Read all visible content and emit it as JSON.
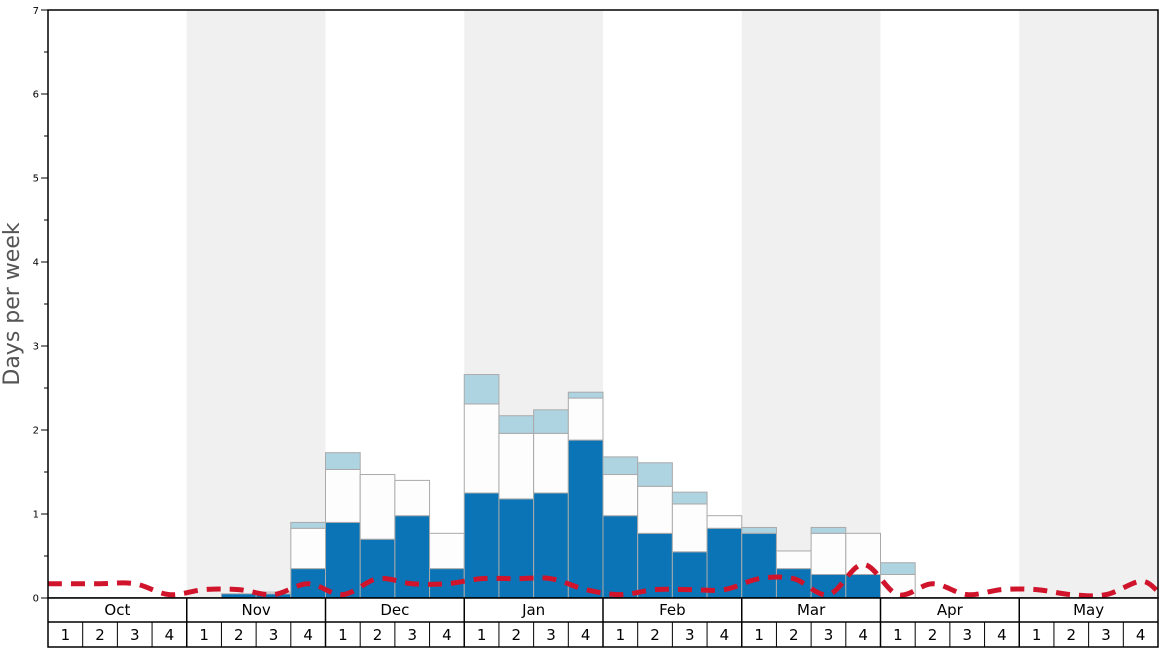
{
  "chart_data": {
    "type": "bar",
    "ylabel": "Days per week",
    "ylim": [
      0,
      7
    ],
    "y_ticks": [
      "0",
      "1",
      "2",
      "3",
      "4",
      "5",
      "6",
      "7"
    ],
    "months": [
      "Oct",
      "Nov",
      "Dec",
      "Jan",
      "Feb",
      "Mar",
      "Apr",
      "May"
    ],
    "week_labels": [
      "1",
      "2",
      "3",
      "4"
    ],
    "shaded_months": [
      "Nov",
      "Jan",
      "Mar",
      "May"
    ],
    "colors": {
      "bottom": "#0a74b6",
      "middle": "#fdfdfd",
      "top": "#aed4e1",
      "line": "#d0142c",
      "shade": "#f0f0f0",
      "bar_edge": "#aaaaaa"
    },
    "series": [
      {
        "values": [
          0,
          0,
          0,
          0,
          0,
          0.05,
          0.05,
          0.35,
          0.9,
          0.7,
          0.98,
          0.35,
          1.25,
          1.18,
          1.25,
          1.88,
          0.98,
          0.77,
          0.55,
          0.83,
          0.77,
          0.35,
          0.28,
          0.28,
          0,
          0,
          0,
          0,
          0,
          0,
          0,
          0
        ]
      },
      {
        "values": [
          0,
          0,
          0,
          0,
          0,
          0,
          0.02,
          0.48,
          0.63,
          0.77,
          0.42,
          0.42,
          1.06,
          0.78,
          0.71,
          0.5,
          0.49,
          0.56,
          0.57,
          0.15,
          0,
          0.21,
          0.49,
          0.49,
          0.28,
          0,
          0,
          0,
          0,
          0,
          0,
          0
        ]
      },
      {
        "values": [
          0,
          0,
          0,
          0,
          0,
          0,
          0,
          0.07,
          0.2,
          0,
          0,
          0,
          0.35,
          0.21,
          0.28,
          0.07,
          0.21,
          0.28,
          0.14,
          0,
          0.07,
          0,
          0.07,
          0,
          0.14,
          0,
          0,
          0,
          0,
          0,
          0,
          0
        ]
      },
      {
        "type": "line",
        "values": [
          0.17,
          0.17,
          0.17,
          0.04,
          0.1,
          0.1,
          0.04,
          0.17,
          0.04,
          0.23,
          0.17,
          0.17,
          0.23,
          0.23,
          0.23,
          0.1,
          0.04,
          0.1,
          0.1,
          0.1,
          0.23,
          0.23,
          0.04,
          0.4,
          0.04,
          0.17,
          0.04,
          0.1,
          0.1,
          0.04,
          0.04,
          0.2
        ]
      }
    ],
    "line_end_value": 0.08
  }
}
